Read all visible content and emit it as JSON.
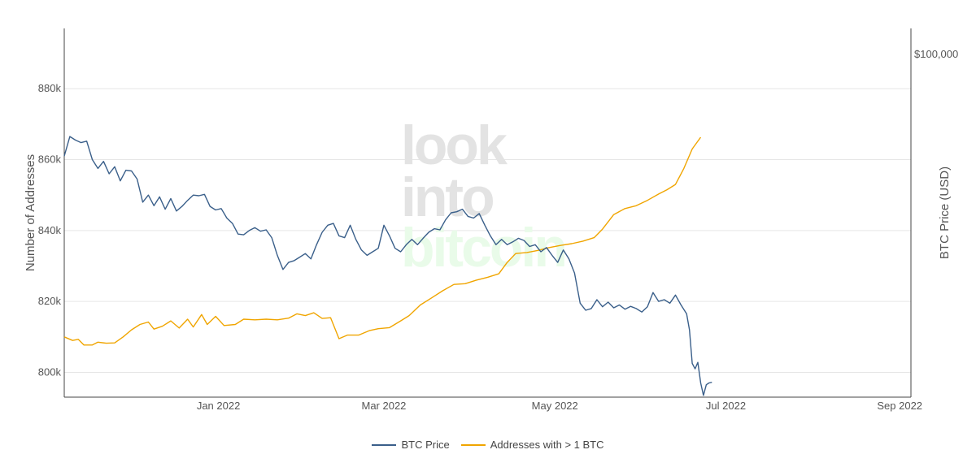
{
  "colors": {
    "btc": "#3a5f8a",
    "addresses": "#f0a500",
    "grid": "#e6e6e6",
    "axis": "#444444",
    "watermark_gray": "#e3e3e3",
    "watermark_green": "#e9fbe9"
  },
  "watermark": {
    "line1": "look",
    "line2": "into",
    "line3": "bitcoin"
  },
  "legend": {
    "btc_label": "BTC Price",
    "addr_label": "Addresses with > 1 BTC"
  },
  "chart_data": {
    "type": "line",
    "x_axis": {
      "ticks": [
        "Jan 2022",
        "Mar 2022",
        "May 2022",
        "Jul 2022",
        "Sep 2022"
      ],
      "range": [
        "2021-11-07",
        "2022-09-05"
      ]
    },
    "y_left": {
      "title": "Number of Addresses",
      "ticks": [
        "800k",
        "820k",
        "840k",
        "860k",
        "880k"
      ],
      "range": [
        793000,
        897000
      ]
    },
    "y_right": {
      "title": "BTC Price (USD)",
      "ticks": [
        "$100,000"
      ],
      "scale": "log"
    },
    "grid": true,
    "legend_position": "bottom-center",
    "series": [
      {
        "name": "Addresses with > 1 BTC",
        "axis": "left",
        "points": [
          [
            "2021-11-07",
            810000
          ],
          [
            "2021-11-10",
            809000
          ],
          [
            "2021-11-12",
            809300
          ],
          [
            "2021-11-14",
            807700
          ],
          [
            "2021-11-17",
            807700
          ],
          [
            "2021-11-19",
            808500
          ],
          [
            "2021-11-22",
            808200
          ],
          [
            "2021-11-25",
            808300
          ],
          [
            "2021-11-28",
            810000
          ],
          [
            "2021-12-01",
            812000
          ],
          [
            "2021-12-04",
            813500
          ],
          [
            "2021-12-07",
            814200
          ],
          [
            "2021-12-09",
            812200
          ],
          [
            "2021-12-12",
            813000
          ],
          [
            "2021-12-15",
            814500
          ],
          [
            "2021-12-18",
            812500
          ],
          [
            "2021-12-21",
            815000
          ],
          [
            "2021-12-23",
            812800
          ],
          [
            "2021-12-26",
            816300
          ],
          [
            "2021-12-28",
            813500
          ],
          [
            "2021-12-31",
            815800
          ],
          [
            "2022-01-03",
            813200
          ],
          [
            "2022-01-07",
            813500
          ],
          [
            "2022-01-10",
            815000
          ],
          [
            "2022-01-14",
            814800
          ],
          [
            "2022-01-18",
            815000
          ],
          [
            "2022-01-22",
            814800
          ],
          [
            "2022-01-26",
            815300
          ],
          [
            "2022-01-29",
            816500
          ],
          [
            "2022-02-01",
            816000
          ],
          [
            "2022-02-04",
            816800
          ],
          [
            "2022-02-07",
            815200
          ],
          [
            "2022-02-10",
            815400
          ],
          [
            "2022-02-13",
            809500
          ],
          [
            "2022-02-16",
            810500
          ],
          [
            "2022-02-20",
            810500
          ],
          [
            "2022-02-24",
            811800
          ],
          [
            "2022-02-27",
            812300
          ],
          [
            "2022-03-03",
            812600
          ],
          [
            "2022-03-07",
            814500
          ],
          [
            "2022-03-10",
            816000
          ],
          [
            "2022-03-14",
            819000
          ],
          [
            "2022-03-18",
            821000
          ],
          [
            "2022-03-22",
            823000
          ],
          [
            "2022-03-26",
            824800
          ],
          [
            "2022-03-30",
            825000
          ],
          [
            "2022-04-03",
            826000
          ],
          [
            "2022-04-07",
            826800
          ],
          [
            "2022-04-11",
            827800
          ],
          [
            "2022-04-14",
            831000
          ],
          [
            "2022-04-17",
            833500
          ],
          [
            "2022-04-21",
            833800
          ],
          [
            "2022-04-25",
            834400
          ],
          [
            "2022-04-29",
            835200
          ],
          [
            "2022-05-03",
            835800
          ],
          [
            "2022-05-07",
            836300
          ],
          [
            "2022-05-11",
            837000
          ],
          [
            "2022-05-15",
            838000
          ],
          [
            "2022-05-18",
            840400
          ],
          [
            "2022-05-22",
            844500
          ],
          [
            "2022-05-26",
            846200
          ],
          [
            "2022-05-30",
            847000
          ],
          [
            "2022-06-03",
            848500
          ],
          [
            "2022-06-07",
            850300
          ],
          [
            "2022-06-10",
            851500
          ],
          [
            "2022-06-13",
            853000
          ],
          [
            "2022-06-16",
            857500
          ],
          [
            "2022-06-19",
            863000
          ],
          [
            "2022-06-22",
            866300
          ]
        ]
      },
      {
        "name": "BTC Price",
        "axis": "right",
        "points": [
          [
            "2021-11-07",
            861000
          ],
          [
            "2021-11-09",
            866500
          ],
          [
            "2021-11-11",
            865500
          ],
          [
            "2021-11-13",
            864800
          ],
          [
            "2021-11-15",
            865200
          ],
          [
            "2021-11-17",
            860000
          ],
          [
            "2021-11-19",
            857500
          ],
          [
            "2021-11-21",
            859500
          ],
          [
            "2021-11-23",
            856000
          ],
          [
            "2021-11-25",
            858000
          ],
          [
            "2021-11-27",
            854000
          ],
          [
            "2021-11-29",
            857000
          ],
          [
            "2021-12-01",
            856800
          ],
          [
            "2021-12-03",
            854500
          ],
          [
            "2021-12-05",
            848000
          ],
          [
            "2021-12-07",
            850000
          ],
          [
            "2021-12-09",
            847000
          ],
          [
            "2021-12-11",
            849500
          ],
          [
            "2021-12-13",
            846000
          ],
          [
            "2021-12-15",
            849000
          ],
          [
            "2021-12-17",
            845500
          ],
          [
            "2021-12-19",
            846800
          ],
          [
            "2021-12-21",
            848500
          ],
          [
            "2021-12-23",
            850000
          ],
          [
            "2021-12-25",
            849800
          ],
          [
            "2021-12-27",
            850200
          ],
          [
            "2021-12-29",
            846800
          ],
          [
            "2021-12-31",
            845800
          ],
          [
            "2022-01-02",
            846200
          ],
          [
            "2022-01-04",
            843500
          ],
          [
            "2022-01-06",
            842000
          ],
          [
            "2022-01-08",
            839000
          ],
          [
            "2022-01-10",
            838800
          ],
          [
            "2022-01-12",
            840000
          ],
          [
            "2022-01-14",
            840800
          ],
          [
            "2022-01-16",
            839800
          ],
          [
            "2022-01-18",
            840200
          ],
          [
            "2022-01-20",
            838000
          ],
          [
            "2022-01-22",
            833000
          ],
          [
            "2022-01-24",
            829000
          ],
          [
            "2022-01-26",
            831000
          ],
          [
            "2022-01-28",
            831500
          ],
          [
            "2022-01-30",
            832500
          ],
          [
            "2022-02-01",
            833500
          ],
          [
            "2022-02-03",
            832000
          ],
          [
            "2022-02-05",
            836000
          ],
          [
            "2022-02-07",
            839500
          ],
          [
            "2022-02-09",
            841500
          ],
          [
            "2022-02-11",
            842000
          ],
          [
            "2022-02-13",
            838500
          ],
          [
            "2022-02-15",
            838000
          ],
          [
            "2022-02-17",
            841500
          ],
          [
            "2022-02-19",
            837500
          ],
          [
            "2022-02-21",
            834500
          ],
          [
            "2022-02-23",
            833000
          ],
          [
            "2022-02-25",
            834000
          ],
          [
            "2022-02-27",
            835000
          ],
          [
            "2022-03-01",
            841500
          ],
          [
            "2022-03-03",
            838500
          ],
          [
            "2022-03-05",
            835000
          ],
          [
            "2022-03-07",
            834000
          ],
          [
            "2022-03-09",
            836000
          ],
          [
            "2022-03-11",
            837500
          ],
          [
            "2022-03-13",
            836000
          ],
          [
            "2022-03-15",
            837800
          ],
          [
            "2022-03-17",
            839500
          ],
          [
            "2022-03-19",
            840500
          ],
          [
            "2022-03-21",
            840200
          ],
          [
            "2022-03-23",
            843000
          ],
          [
            "2022-03-25",
            845000
          ],
          [
            "2022-03-27",
            845300
          ],
          [
            "2022-03-29",
            846000
          ],
          [
            "2022-03-31",
            844000
          ],
          [
            "2022-04-02",
            843500
          ],
          [
            "2022-04-04",
            844800
          ],
          [
            "2022-04-06",
            841500
          ],
          [
            "2022-04-08",
            838500
          ],
          [
            "2022-04-10",
            836000
          ],
          [
            "2022-04-12",
            837500
          ],
          [
            "2022-04-14",
            836000
          ],
          [
            "2022-04-16",
            836800
          ],
          [
            "2022-04-18",
            837800
          ],
          [
            "2022-04-20",
            837200
          ],
          [
            "2022-04-22",
            835500
          ],
          [
            "2022-04-24",
            836000
          ],
          [
            "2022-04-26",
            834000
          ],
          [
            "2022-04-28",
            835200
          ],
          [
            "2022-04-30",
            833000
          ],
          [
            "2022-05-02",
            831000
          ],
          [
            "2022-05-04",
            834500
          ],
          [
            "2022-05-06",
            832000
          ],
          [
            "2022-05-08",
            828000
          ],
          [
            "2022-05-10",
            819500
          ],
          [
            "2022-05-12",
            817500
          ],
          [
            "2022-05-14",
            818000
          ],
          [
            "2022-05-16",
            820500
          ],
          [
            "2022-05-18",
            818500
          ],
          [
            "2022-05-20",
            819800
          ],
          [
            "2022-05-22",
            818200
          ],
          [
            "2022-05-24",
            819000
          ],
          [
            "2022-05-26",
            817800
          ],
          [
            "2022-05-28",
            818600
          ],
          [
            "2022-05-30",
            818000
          ],
          [
            "2022-06-01",
            817000
          ],
          [
            "2022-06-03",
            818500
          ],
          [
            "2022-06-05",
            822500
          ],
          [
            "2022-06-07",
            820000
          ],
          [
            "2022-06-09",
            820500
          ],
          [
            "2022-06-11",
            819500
          ],
          [
            "2022-06-13",
            821800
          ],
          [
            "2022-06-15",
            819000
          ],
          [
            "2022-06-17",
            816500
          ],
          [
            "2022-06-18",
            812000
          ],
          [
            "2022-06-19",
            802500
          ],
          [
            "2022-06-20",
            801000
          ],
          [
            "2022-06-21",
            802800
          ],
          [
            "2022-06-22",
            797000
          ],
          [
            "2022-06-23",
            793500
          ],
          [
            "2022-06-24",
            796500
          ],
          [
            "2022-06-25",
            797000
          ],
          [
            "2022-06-26",
            797200
          ]
        ]
      }
    ]
  }
}
